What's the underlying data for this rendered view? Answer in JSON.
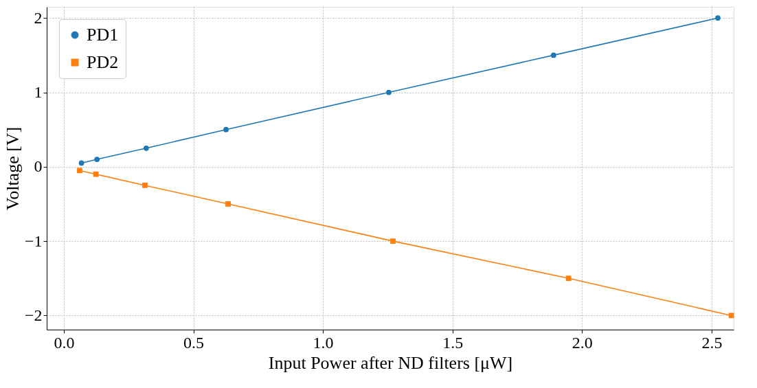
{
  "chart_data": {
    "type": "line",
    "xlabel": "Input Power after ND filters [μW]",
    "ylabel": "Voltage [V]",
    "xlim": [
      -0.066,
      2.585
    ],
    "ylim": [
      -2.19,
      2.15
    ],
    "xticks": [
      {
        "value": 0,
        "label": "0.0"
      },
      0.5,
      {
        "value": 1,
        "label": "1.0"
      },
      1.5,
      {
        "value": 2,
        "label": "2.0"
      },
      2.5
    ],
    "yticks": [
      -2,
      -1,
      0,
      1,
      2
    ],
    "grid": true,
    "legend": "top left",
    "line_style": "solid",
    "series": [
      {
        "name": "PD1",
        "color": "#1f77b4",
        "marker": "circle",
        "x": [
          0.068,
          0.128,
          0.318,
          0.626,
          1.254,
          1.89,
          2.524
        ],
        "values": [
          0.05,
          0.1,
          0.25,
          0.5,
          1.0,
          1.5,
          2.0
        ]
      },
      {
        "name": "PD2",
        "color": "#ff7f0e",
        "marker": "square",
        "x": [
          0.061,
          0.124,
          0.313,
          0.634,
          1.27,
          1.948,
          2.576
        ],
        "values": [
          -0.05,
          -0.1,
          -0.25,
          -0.5,
          -1.0,
          -1.5,
          -2.0
        ]
      }
    ]
  }
}
